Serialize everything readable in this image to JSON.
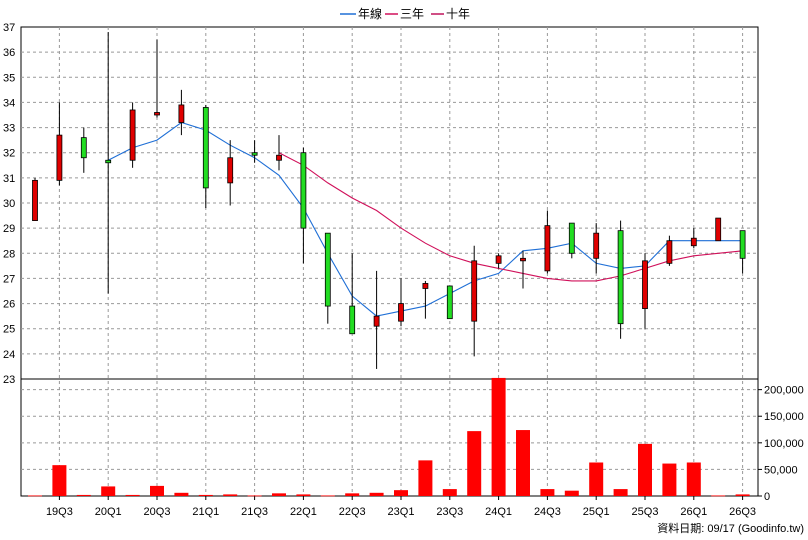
{
  "chart_data": {
    "type": "candlestick",
    "legend": [
      {
        "name": "年線",
        "color": "#1f6fd6"
      },
      {
        "name": "三年",
        "color": "#d0105a"
      },
      {
        "name": "十年",
        "color": "#c0145c"
      }
    ],
    "x_tick_labels": [
      "19Q3",
      "20Q1",
      "20Q3",
      "21Q1",
      "21Q3",
      "22Q1",
      "22Q3",
      "23Q1",
      "23Q3",
      "24Q1",
      "24Q3",
      "25Q1",
      "25Q3",
      "26Q1",
      "26Q3"
    ],
    "price_axis": {
      "min": 23,
      "max": 37,
      "ticks": [
        23,
        24,
        25,
        26,
        27,
        28,
        29,
        30,
        31,
        32,
        33,
        34,
        35,
        36,
        37
      ]
    },
    "volume_axis": {
      "min": 0,
      "max": 220000,
      "tick_labels": [
        "0",
        "50,000",
        "100,000",
        "150,000",
        "200,000"
      ],
      "tick_values": [
        0,
        50000,
        100000,
        150000,
        200000
      ]
    },
    "candles": [
      {
        "open": 29.3,
        "close": 30.9,
        "high": 31.0,
        "low": 29.3,
        "volume": 1000
      },
      {
        "open": 30.9,
        "close": 32.7,
        "high": 34.0,
        "low": 30.7,
        "volume": 58000
      },
      {
        "open": 32.6,
        "close": 31.8,
        "high": 33.0,
        "low": 31.2,
        "volume": 2000
      },
      {
        "open": 31.7,
        "close": 31.6,
        "high": 36.8,
        "low": 26.4,
        "volume": 18000
      },
      {
        "open": 31.7,
        "close": 33.7,
        "high": 34.0,
        "low": 31.4,
        "volume": 2000
      },
      {
        "open": 33.5,
        "close": 33.6,
        "high": 36.5,
        "low": 33.4,
        "volume": 19000
      },
      {
        "open": 33.2,
        "close": 33.9,
        "high": 34.5,
        "low": 32.7,
        "volume": 6000
      },
      {
        "open": 33.8,
        "close": 30.6,
        "high": 33.9,
        "low": 29.8,
        "volume": 2000
      },
      {
        "open": 30.8,
        "close": 31.8,
        "high": 32.5,
        "low": 29.9,
        "volume": 3000
      },
      {
        "open": 32.0,
        "close": 31.9,
        "high": 32.5,
        "low": 31.6,
        "volume": 1000
      },
      {
        "open": 31.7,
        "close": 31.9,
        "high": 32.7,
        "low": 31.3,
        "volume": 5000
      },
      {
        "open": 32.0,
        "close": 29.0,
        "high": 32.2,
        "low": 27.6,
        "volume": 3000
      },
      {
        "open": 28.8,
        "close": 25.9,
        "high": 28.8,
        "low": 25.2,
        "volume": 1000
      },
      {
        "open": 25.9,
        "close": 24.8,
        "high": 28.0,
        "low": 24.8,
        "volume": 5000
      },
      {
        "open": 25.1,
        "close": 25.5,
        "high": 27.3,
        "low": 23.4,
        "volume": 6000
      },
      {
        "open": 25.3,
        "close": 26.0,
        "high": 27.0,
        "low": 25.1,
        "volume": 11000
      },
      {
        "open": 26.6,
        "close": 26.8,
        "high": 26.9,
        "low": 25.4,
        "volume": 67000
      },
      {
        "open": 26.7,
        "close": 25.4,
        "high": 26.7,
        "low": 25.4,
        "volume": 13000
      },
      {
        "open": 25.3,
        "close": 27.7,
        "high": 28.3,
        "low": 23.9,
        "volume": 122000
      },
      {
        "open": 27.6,
        "close": 27.9,
        "high": 28.0,
        "low": 27.4,
        "volume": 222000
      },
      {
        "open": 27.7,
        "close": 27.8,
        "high": 28.1,
        "low": 26.6,
        "volume": 124000
      },
      {
        "open": 27.3,
        "close": 29.1,
        "high": 29.7,
        "low": 27.2,
        "volume": 13000
      },
      {
        "open": 29.2,
        "close": 28.0,
        "high": 29.2,
        "low": 27.8,
        "volume": 10000
      },
      {
        "open": 27.8,
        "close": 28.8,
        "high": 29.2,
        "low": 27.2,
        "volume": 63000
      },
      {
        "open": 28.9,
        "close": 25.2,
        "high": 29.3,
        "low": 24.6,
        "volume": 13000
      },
      {
        "open": 25.8,
        "close": 27.7,
        "high": 28.0,
        "low": 25.0,
        "volume": 98000
      },
      {
        "open": 27.6,
        "close": 28.5,
        "high": 28.7,
        "low": 27.5,
        "volume": 61000
      },
      {
        "open": 28.3,
        "close": 28.6,
        "high": 29.0,
        "low": 28.2,
        "volume": 63000
      },
      {
        "open": 28.5,
        "close": 29.4,
        "high": 29.4,
        "low": 28.5,
        "volume": 1000
      },
      {
        "open": 28.9,
        "close": 27.8,
        "high": 28.9,
        "low": 27.2,
        "volume": 3000
      }
    ],
    "series": [
      {
        "name": "年線",
        "values": [
          null,
          null,
          null,
          31.7,
          32.2,
          32.5,
          33.2,
          32.9,
          32.3,
          31.8,
          31.1,
          29.8,
          28.0,
          26.3,
          25.5,
          25.7,
          25.9,
          26.4,
          26.9,
          27.2,
          28.1,
          28.2,
          28.4,
          27.6,
          27.4,
          27.5,
          28.5,
          28.5,
          28.5,
          28.5
        ]
      },
      {
        "name": "三年",
        "values": [
          null,
          null,
          null,
          null,
          null,
          null,
          null,
          null,
          null,
          null,
          32.0,
          31.5,
          30.8,
          30.2,
          29.7,
          29.0,
          28.4,
          27.9,
          27.6,
          27.4,
          27.2,
          27.0,
          26.9,
          26.9,
          27.1,
          27.4,
          27.7,
          27.9,
          28.0,
          28.1
        ]
      }
    ],
    "footer": "資料日期: 09/17  (Goodinfo.tw)"
  }
}
